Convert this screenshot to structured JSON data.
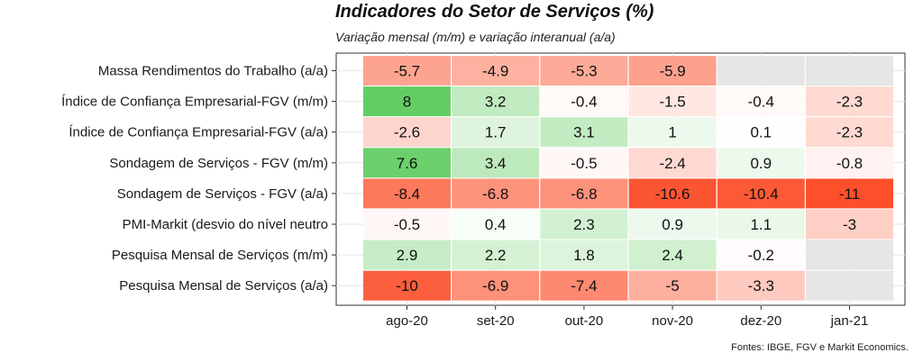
{
  "chart_data": {
    "type": "heatmap",
    "title": "Indicadores do Setor de Serviços (%)",
    "subtitle": "Variação mensal (m/m) e  variação interanual (a/a)",
    "source": "Fontes: IBGE, FGV e Markit Economics.",
    "columns": [
      "ago-20",
      "set-20",
      "out-20",
      "nov-20",
      "dez-20",
      "jan-21"
    ],
    "rows": [
      "Massa Rendimentos do Trabalho (a/a)",
      "Índice de Confiança Empresarial-FGV (m/m)",
      "Índice de Confiança Empresarial-FGV (a/a)",
      "Sondagem de Serviços - FGV (m/m)",
      "Sondagem de Serviços - FGV (a/a)",
      "PMI-Markit (desvio do nível neutro",
      "Pesquisa Mensal de Serviços (m/m)",
      "Pesquisa Mensal de Serviços (a/a)"
    ],
    "values": [
      [
        -5.7,
        -4.9,
        -5.3,
        -5.9,
        null,
        null
      ],
      [
        8,
        3.2,
        -0.4,
        -1.5,
        -0.4,
        -2.3
      ],
      [
        -2.6,
        1.7,
        3.1,
        1,
        0.1,
        -2.3
      ],
      [
        7.6,
        3.4,
        -0.5,
        -2.4,
        0.9,
        -0.8
      ],
      [
        -8.4,
        -6.8,
        -6.8,
        -10.6,
        -10.4,
        -11
      ],
      [
        -0.5,
        0.4,
        2.3,
        0.9,
        1.1,
        -3
      ],
      [
        2.9,
        2.2,
        1.8,
        2.4,
        -0.2,
        null
      ],
      [
        -10,
        -6.9,
        -7.4,
        -5,
        -3.3,
        null
      ]
    ],
    "color_scale": {
      "min": -11,
      "mid": 0,
      "max": 8,
      "low_color": "#fc4f2a",
      "mid_color": "#ffffff",
      "high_color": "#63cd63",
      "na_color": "#e6e6e6"
    },
    "grid": true
  }
}
